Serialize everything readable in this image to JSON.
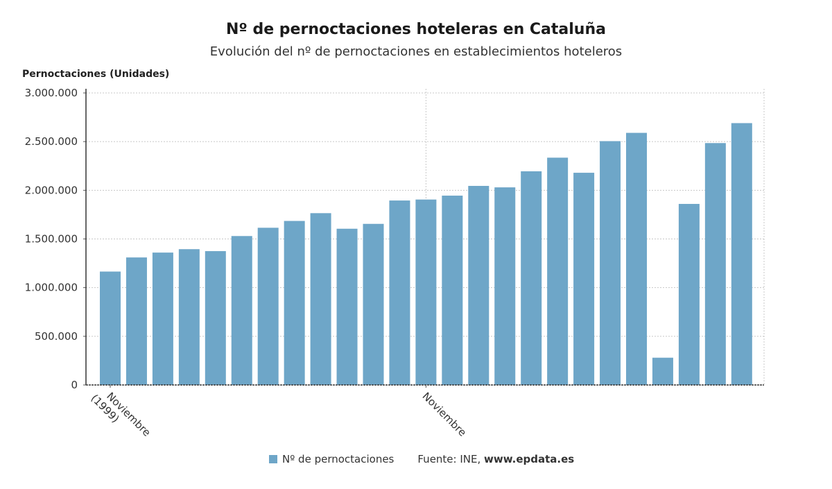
{
  "chart_data": {
    "type": "bar",
    "title": "Nº de pernoctaciones hoteleras en Cataluña",
    "subtitle": "Evolución del nº de pernoctaciones en establecimientos hoteleros",
    "ylabel": "Pernoctaciones (Unidades)",
    "ylim": [
      0,
      3000000
    ],
    "yticks": [
      "0",
      "500.000",
      "1.000.000",
      "1.500.000",
      "2.000.000",
      "2.500.000",
      "3.000.000"
    ],
    "xtick_labels": [
      {
        "index": 0,
        "lines": [
          "Noviembre",
          "(1999)"
        ]
      },
      {
        "index": 12,
        "lines": [
          "Noviembre"
        ]
      }
    ],
    "grid": true,
    "color": "#6ea6c8",
    "series": [
      {
        "name": "Nº de pernoctaciones",
        "values": [
          1165000,
          1310000,
          1360000,
          1395000,
          1375000,
          1530000,
          1615000,
          1685000,
          1765000,
          1605000,
          1655000,
          1895000,
          1905000,
          1945000,
          2045000,
          2030000,
          2195000,
          2335000,
          2180000,
          2505000,
          2590000,
          280000,
          1860000,
          2485000,
          2690000
        ]
      }
    ]
  },
  "legend": {
    "label": "Nº de pernoctaciones"
  },
  "source": {
    "prefix": "Fuente: INE, ",
    "site": "www.epdata.es"
  }
}
